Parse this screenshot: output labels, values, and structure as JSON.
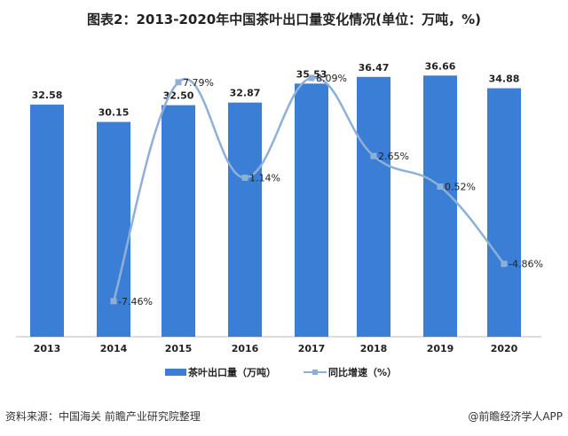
{
  "chart_data": {
    "type": "bar",
    "title": "图表2：2013-2020年中国茶叶出口量变化情况(单位：万吨，%)",
    "categories": [
      "2013",
      "2014",
      "2015",
      "2016",
      "2017",
      "2018",
      "2019",
      "2020"
    ],
    "series": [
      {
        "name": "茶叶出口量（万吨）",
        "type": "bar",
        "color": "#3a7fd5",
        "values": [
          32.58,
          30.15,
          32.5,
          32.87,
          35.53,
          36.47,
          36.66,
          34.88
        ],
        "labels": [
          "32.58",
          "30.15",
          "32.50",
          "32.87",
          "35.53",
          "36.47",
          "36.66",
          "34.88"
        ]
      },
      {
        "name": "同比增速（%）",
        "type": "line",
        "color": "#8fb0d6",
        "values": [
          null,
          -7.46,
          7.79,
          1.14,
          8.09,
          2.65,
          0.52,
          -4.86
        ],
        "labels": [
          "",
          "-7.46%",
          "7.79%",
          "1.14%",
          "8.09%",
          "2.65%",
          "0.52%",
          "-4.86%"
        ]
      }
    ],
    "legend": "bottom",
    "grid": false
  },
  "footer": {
    "source": "资料来源：中国海关 前瞻产业研究院整理",
    "credit": "@前瞻经济学人APP"
  }
}
